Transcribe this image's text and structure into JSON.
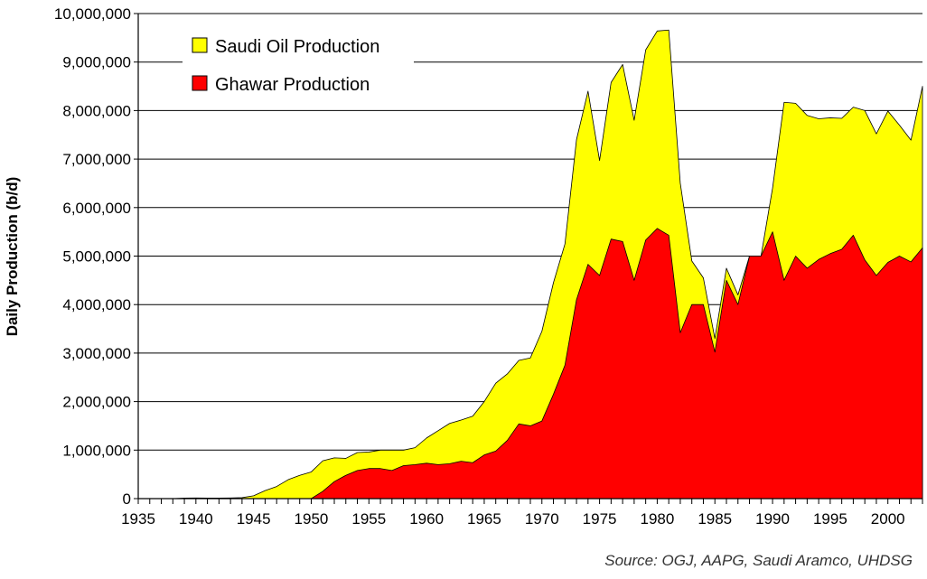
{
  "chart_data": {
    "type": "area",
    "title": "",
    "ylabel": "Daily Production (b/d)",
    "xlabel": "",
    "xlim": [
      1935,
      2003
    ],
    "ylim": [
      0,
      10000000
    ],
    "x_ticks": [
      1935,
      1936,
      1937,
      1938,
      1939,
      1940,
      1941,
      1942,
      1943,
      1944,
      1945,
      1946,
      1947,
      1948,
      1949,
      1950,
      1951,
      1952,
      1953,
      1954,
      1955,
      1956,
      1957,
      1958,
      1959,
      1960,
      1961,
      1962,
      1963,
      1964,
      1965,
      1966,
      1967,
      1968,
      1969,
      1970,
      1971,
      1972,
      1973,
      1974,
      1975,
      1976,
      1977,
      1978,
      1979,
      1980,
      1981,
      1982,
      1983,
      1984,
      1985,
      1986,
      1987,
      1988,
      1989,
      1990,
      1991,
      1992,
      1993,
      1994,
      1995,
      1996,
      1997,
      1998,
      1999,
      2000,
      2001,
      2002,
      2003
    ],
    "x_tick_labels": [
      "1935",
      "1940",
      "1945",
      "1950",
      "1955",
      "1960",
      "1965",
      "1970",
      "1975",
      "1980",
      "1985",
      "1990",
      "1995",
      "2000"
    ],
    "x_label_years": [
      1935,
      1940,
      1945,
      1950,
      1955,
      1960,
      1965,
      1970,
      1975,
      1980,
      1985,
      1990,
      1995,
      2000
    ],
    "y_ticks": [
      0,
      1000000,
      2000000,
      3000000,
      4000000,
      5000000,
      6000000,
      7000000,
      8000000,
      9000000,
      10000000
    ],
    "y_tick_labels": [
      "0",
      "1,000,000",
      "2,000,000",
      "3,000,000",
      "4,000,000",
      "5,000,000",
      "6,000,000",
      "7,000,000",
      "8,000,000",
      "9,000,000",
      "10,000,000"
    ],
    "grid": "horizontal",
    "legend_position": "top-left",
    "x": [
      1935,
      1936,
      1937,
      1938,
      1939,
      1940,
      1941,
      1942,
      1943,
      1944,
      1945,
      1946,
      1947,
      1948,
      1949,
      1950,
      1951,
      1952,
      1953,
      1954,
      1955,
      1956,
      1957,
      1958,
      1959,
      1960,
      1961,
      1962,
      1963,
      1964,
      1965,
      1966,
      1967,
      1968,
      1969,
      1970,
      1971,
      1972,
      1973,
      1974,
      1975,
      1976,
      1977,
      1978,
      1979,
      1980,
      1981,
      1982,
      1983,
      1984,
      1985,
      1986,
      1987,
      1988,
      1989,
      1990,
      1991,
      1992,
      1993,
      1994,
      1995,
      1996,
      1997,
      1998,
      1999,
      2000,
      2001,
      2002,
      2003
    ],
    "series": [
      {
        "name": "Saudi Oil Production",
        "color": "#ffff00",
        "values": [
          0,
          0,
          0,
          0,
          10000,
          14000,
          12000,
          12000,
          13000,
          20000,
          58000,
          165000,
          250000,
          390000,
          480000,
          550000,
          780000,
          840000,
          830000,
          950000,
          960000,
          1000000,
          1000000,
          1000000,
          1050000,
          1250000,
          1400000,
          1550000,
          1620000,
          1700000,
          2000000,
          2380000,
          2570000,
          2850000,
          2900000,
          3450000,
          4450000,
          5250000,
          7400000,
          8400000,
          6970000,
          8580000,
          8950000,
          7800000,
          9250000,
          9640000,
          9660000,
          6500000,
          4900000,
          4550000,
          3300000,
          4750000,
          4200000,
          5000000,
          5000000,
          6400000,
          8170000,
          8150000,
          7900000,
          7830000,
          7850000,
          7840000,
          8070000,
          8000000,
          7520000,
          7990000,
          7700000,
          7390000,
          8500000
        ]
      },
      {
        "name": "Ghawar Production",
        "color": "#ff0000",
        "values": [
          0,
          0,
          0,
          0,
          0,
          0,
          0,
          0,
          0,
          0,
          0,
          0,
          0,
          0,
          0,
          0,
          150000,
          350000,
          480000,
          580000,
          620000,
          620000,
          580000,
          680000,
          700000,
          730000,
          700000,
          720000,
          770000,
          740000,
          900000,
          980000,
          1200000,
          1540000,
          1500000,
          1600000,
          2150000,
          2750000,
          4100000,
          4830000,
          4600000,
          5350000,
          5300000,
          4500000,
          5330000,
          5570000,
          5430000,
          3420000,
          4000000,
          4000000,
          3020000,
          4500000,
          4000000,
          5000000,
          5000000,
          5500000,
          4500000,
          5000000,
          4750000,
          4930000,
          5050000,
          5140000,
          5430000,
          4920000,
          4600000,
          4870000,
          5000000,
          4880000,
          5170000
        ]
      }
    ]
  },
  "legend": {
    "items": [
      {
        "label": "Saudi Oil Production",
        "color": "#ffff00"
      },
      {
        "label": "Ghawar Production",
        "color": "#ff0000"
      }
    ]
  },
  "source_note": "Source: OGJ, AAPG, Saudi Aramco, UHDSG"
}
